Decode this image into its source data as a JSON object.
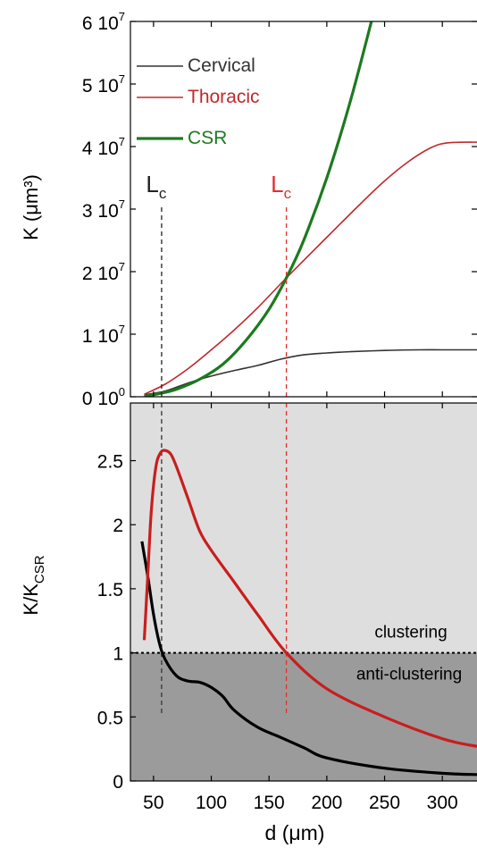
{
  "chart_data": [
    {
      "type": "line",
      "xlabel": "",
      "ylabel": "K (μm³)",
      "xlim": [
        30,
        330
      ],
      "ylim": [
        0,
        60000000
      ],
      "yticks": [
        0,
        10000000,
        20000000,
        30000000,
        40000000,
        50000000,
        60000000
      ],
      "ytick_labels": [
        {
          "base": "0 10",
          "exp": "0"
        },
        {
          "base": "1 10",
          "exp": "7"
        },
        {
          "base": "2 10",
          "exp": "7"
        },
        {
          "base": "3 10",
          "exp": "7"
        },
        {
          "base": "4 10",
          "exp": "7"
        },
        {
          "base": "5 10",
          "exp": "7"
        },
        {
          "base": "6 10",
          "exp": "7"
        }
      ],
      "xticks": [
        50,
        100,
        150,
        200,
        250,
        300
      ],
      "grid": false,
      "legend": "top-left",
      "series": [
        {
          "name": "Cervical",
          "color": "#333333",
          "x": [
            42,
            60,
            80,
            100,
            120,
            140,
            160,
            180,
            200,
            220,
            250,
            280,
            300,
            330
          ],
          "y": [
            300000,
            900000,
            2200000,
            3300000,
            4200000,
            5000000,
            6000000,
            6700000,
            7000000,
            7200000,
            7400000,
            7500000,
            7500000,
            7500000
          ]
        },
        {
          "name": "Thoracic",
          "color": "#c0282d",
          "x": [
            42,
            60,
            80,
            100,
            120,
            140,
            165,
            200,
            230,
            250,
            270,
            290,
            305,
            330
          ],
          "y": [
            400000,
            2000000,
            4500000,
            7500000,
            10700000,
            14200000,
            19000000,
            25500000,
            31000000,
            34500000,
            37500000,
            39800000,
            40600000,
            40700000
          ]
        },
        {
          "name": "CSR",
          "color": "#1c7a1f",
          "x": [
            42,
            55,
            70,
            90,
            110,
            130,
            150,
            165,
            180,
            200,
            220,
            240
          ],
          "y": [
            100000,
            500000,
            1200000,
            2800000,
            5200000,
            9000000,
            14000000,
            19000000,
            25000000,
            35000000,
            47000000,
            61000000
          ]
        }
      ],
      "annotations": [
        {
          "label": "L",
          "sub": "c",
          "x": 57,
          "color": "#222222"
        },
        {
          "label": "L",
          "sub": "c",
          "x": 165,
          "color": "#e03030"
        }
      ]
    },
    {
      "type": "line",
      "xlabel": "d (μm)",
      "ylabel": "K/K",
      "ylabel_sub": "CSR",
      "xlim": [
        30,
        330
      ],
      "ylim": [
        0,
        2.95
      ],
      "yticks": [
        0,
        0.5,
        1,
        1.5,
        2,
        2.5
      ],
      "ytick_labels": [
        "0",
        "0.5",
        "1",
        "1.5",
        "2",
        "2.5"
      ],
      "xticks": [
        50,
        100,
        150,
        200,
        250,
        300
      ],
      "xtick_labels": [
        "50",
        "100",
        "150",
        "200",
        "250",
        "300"
      ],
      "grid": false,
      "threshold": 1,
      "regions": [
        {
          "label": "clustering",
          "range": [
            1,
            2.95
          ],
          "color": "#dedede"
        },
        {
          "label": "anti-clustering",
          "range": [
            0,
            1
          ],
          "color": "#9b9b9b"
        }
      ],
      "series": [
        {
          "name": "Cervical",
          "color": "#000000",
          "x": [
            40,
            45,
            50,
            55,
            60,
            70,
            80,
            90,
            100,
            110,
            120,
            140,
            160,
            180,
            200,
            250,
            300,
            330
          ],
          "y": [
            1.87,
            1.6,
            1.3,
            1.08,
            0.95,
            0.82,
            0.78,
            0.77,
            0.73,
            0.66,
            0.55,
            0.42,
            0.34,
            0.26,
            0.18,
            0.1,
            0.06,
            0.05
          ]
        },
        {
          "name": "Thoracic",
          "color": "#c81e1e",
          "x": [
            42,
            45,
            48,
            52,
            56,
            60,
            65,
            70,
            80,
            90,
            100,
            120,
            140,
            165,
            200,
            250,
            300,
            330
          ],
          "y": [
            1.1,
            1.6,
            2.1,
            2.45,
            2.56,
            2.58,
            2.55,
            2.45,
            2.2,
            1.95,
            1.8,
            1.55,
            1.3,
            1.0,
            0.72,
            0.5,
            0.33,
            0.27
          ]
        }
      ],
      "annotations": [
        {
          "x": 57,
          "color": "#333333"
        },
        {
          "x": 165,
          "color": "#e03030"
        }
      ]
    }
  ]
}
